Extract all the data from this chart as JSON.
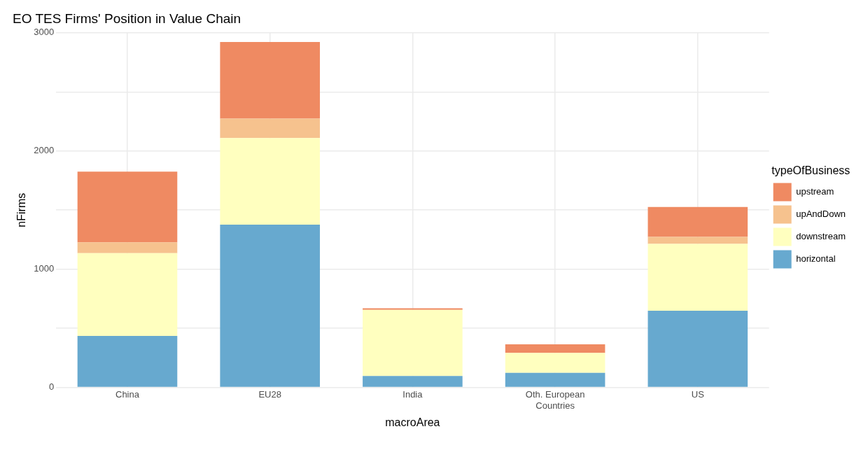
{
  "chart_data": {
    "type": "bar",
    "title": "EO TES Firms' Position in Value Chain",
    "xlabel": "macroArea",
    "ylabel": "nFirms",
    "legend_title": "typeOfBusiness",
    "categories": [
      "China",
      "EU28",
      "India",
      "Oth. European Countries",
      "US"
    ],
    "stacked": true,
    "series": [
      {
        "name": "horizontal",
        "color": "#67a9cf",
        "values": [
          435,
          1377,
          97,
          123,
          649
        ]
      },
      {
        "name": "downstream",
        "color": "#ffffbf",
        "values": [
          701,
          733,
          559,
          169,
          565
        ]
      },
      {
        "name": "upAndDown",
        "color": "#f6c28e",
        "values": [
          91,
          163,
          0,
          0,
          59
        ]
      },
      {
        "name": "upstream",
        "color": "#ef8a62",
        "values": [
          598,
          649,
          13,
          72,
          253
        ]
      }
    ],
    "ylim": [
      0,
      3000
    ],
    "yticks": [
      0,
      {
        "value": 500,
        "label": null
      },
      1000,
      {
        "value": 1500,
        "label": null
      },
      2000,
      {
        "value": 2500,
        "label": null
      },
      3000
    ],
    "grid": true,
    "legend": "right"
  }
}
